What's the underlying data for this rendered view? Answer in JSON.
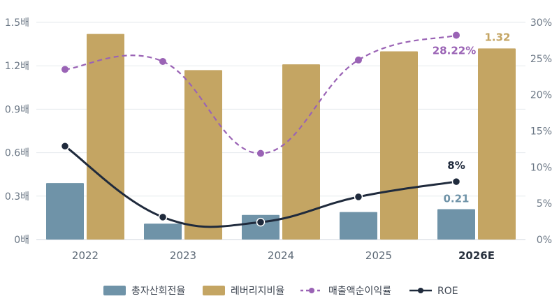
{
  "chart_data": {
    "type": "bar",
    "categories": [
      "2022",
      "2023",
      "2024",
      "2025",
      "2026E"
    ],
    "highlight_category": "2026E",
    "y_left": {
      "ticks": [
        "0배",
        "0.3배",
        "0.6배",
        "0.9배",
        "1.2배",
        "1.5배"
      ],
      "ylim": [
        0,
        1.5
      ]
    },
    "y_right": {
      "ticks": [
        "0%",
        "5%",
        "10%",
        "15%",
        "20%",
        "25%",
        "30%"
      ],
      "ylim": [
        0,
        30
      ]
    },
    "series": [
      {
        "name": "총자산회전율",
        "kind": "bar",
        "axis": "left",
        "color": "#6f93a8",
        "values": [
          0.39,
          0.11,
          0.17,
          0.19,
          0.21
        ]
      },
      {
        "name": "레버리지비율",
        "kind": "bar",
        "axis": "left",
        "color": "#c4a563",
        "values": [
          1.42,
          1.17,
          1.21,
          1.3,
          1.32
        ]
      },
      {
        "name": "매출액순이익률",
        "kind": "line",
        "style": "dashed",
        "axis": "right",
        "color": "#9a63b5",
        "values": [
          23.5,
          24.6,
          11.9,
          24.8,
          28.22
        ]
      },
      {
        "name": "ROE",
        "kind": "line",
        "style": "solid",
        "axis": "right",
        "color": "#1f2a3c",
        "values": [
          12.9,
          3.1,
          2.4,
          5.9,
          8.0
        ]
      }
    ],
    "annotations": [
      {
        "series": "레버리지비율",
        "index": 4,
        "label": "1.32",
        "color": "#c4a563"
      },
      {
        "series": "매출액순이익률",
        "index": 4,
        "label": "28.22%",
        "color": "#9a63b5"
      },
      {
        "series": "ROE",
        "index": 4,
        "label": "8%",
        "color": "#1f2a3c"
      },
      {
        "series": "총자산회전율",
        "index": 4,
        "label": "0.21",
        "color": "#6f93a8"
      }
    ],
    "grid": true,
    "legend_position": "bottom"
  }
}
